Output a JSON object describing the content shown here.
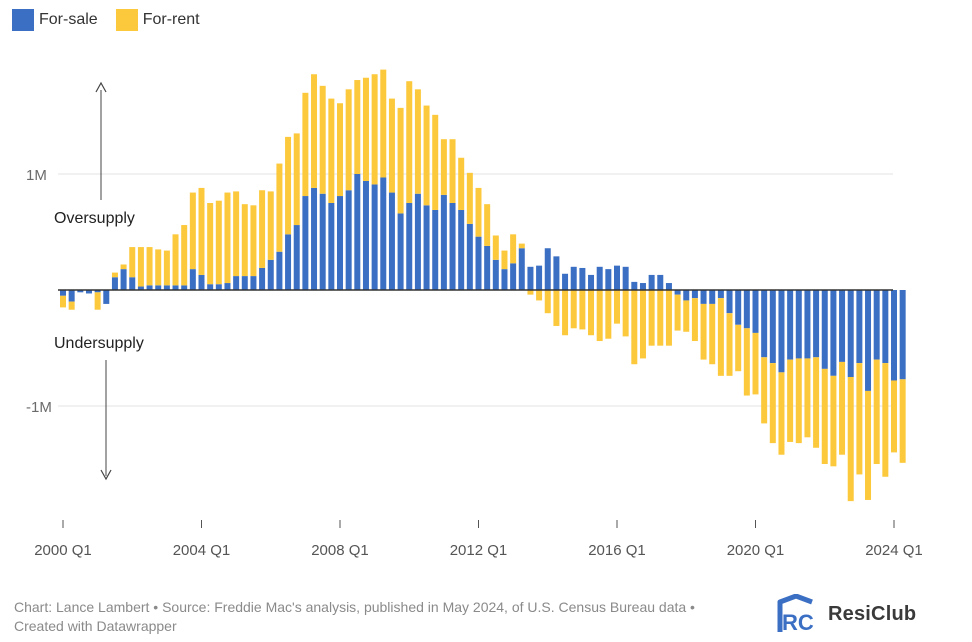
{
  "legend": [
    {
      "label": "For-sale",
      "color": "#3b6fc4"
    },
    {
      "label": "For-rent",
      "color": "#fcc93c"
    }
  ],
  "annotations": {
    "oversupply": "Oversupply",
    "undersupply": "Undersupply"
  },
  "footer": {
    "credit": "Chart: Lance Lambert • Source: Freddie Mac's analysis, published in May 2024, of U.S. Census Bureau data • Created with Datawrapper"
  },
  "brand": {
    "name": "ResiClub",
    "logo_letters": "RC"
  },
  "chart_data": {
    "type": "bar",
    "stacked": true,
    "title": "",
    "xlabel": "",
    "ylabel": "",
    "ylim": [
      -1.98,
      1.95
    ],
    "y_ticks": [
      {
        "value": 1,
        "label": "1M"
      },
      {
        "value": -1,
        "label": "-1M"
      }
    ],
    "grid": true,
    "legend_position": "top-left",
    "x_ticks": [
      {
        "value": 2000.0,
        "label": "2000 Q1"
      },
      {
        "value": 2004.0,
        "label": "2004 Q1"
      },
      {
        "value": 2008.0,
        "label": "2008 Q1"
      },
      {
        "value": 2012.0,
        "label": "2012 Q1"
      },
      {
        "value": 2016.0,
        "label": "2016 Q1"
      },
      {
        "value": 2020.0,
        "label": "2020 Q1"
      },
      {
        "value": 2024.0,
        "label": "2024 Q1"
      }
    ],
    "period_start": "2000 Q1",
    "period_step": "quarter",
    "series": [
      {
        "name": "For-sale",
        "color": "#3b6fc4",
        "values": [
          -0.05,
          -0.1,
          -0.02,
          -0.03,
          -0.02,
          -0.12,
          0.11,
          0.18,
          0.11,
          0.03,
          0.04,
          0.04,
          0.04,
          0.04,
          0.04,
          0.18,
          0.13,
          0.05,
          0.05,
          0.06,
          0.12,
          0.12,
          0.12,
          0.19,
          0.26,
          0.33,
          0.48,
          0.56,
          0.81,
          0.88,
          0.83,
          0.75,
          0.81,
          0.86,
          1.0,
          0.94,
          0.91,
          0.97,
          0.84,
          0.66,
          0.75,
          0.83,
          0.73,
          0.69,
          0.82,
          0.75,
          0.69,
          0.57,
          0.46,
          0.38,
          0.26,
          0.18,
          0.23,
          0.36,
          0.2,
          0.21,
          0.36,
          0.29,
          0.14,
          0.2,
          0.19,
          0.13,
          0.2,
          0.18,
          0.21,
          0.2,
          0.07,
          0.06,
          0.13,
          0.13,
          0.06,
          -0.04,
          -0.09,
          -0.07,
          -0.12,
          -0.12,
          -0.07,
          -0.2,
          -0.3,
          -0.33,
          -0.37,
          -0.58,
          -0.63,
          -0.71,
          -0.6,
          -0.59,
          -0.59,
          -0.58,
          -0.68,
          -0.74,
          -0.62,
          -0.75,
          -0.63,
          -0.87,
          -0.6,
          -0.63,
          -0.78,
          -0.77
        ]
      },
      {
        "name": "For-rent",
        "color": "#fcc93c",
        "values": [
          -0.1,
          -0.07,
          0.0,
          0.0,
          -0.15,
          0.0,
          0.04,
          0.04,
          0.26,
          0.34,
          0.33,
          0.31,
          0.3,
          0.44,
          0.52,
          0.66,
          0.75,
          0.7,
          0.72,
          0.78,
          0.73,
          0.62,
          0.61,
          0.67,
          0.59,
          0.76,
          0.84,
          0.79,
          0.89,
          0.98,
          0.93,
          0.9,
          0.8,
          0.87,
          0.81,
          0.89,
          0.95,
          0.93,
          0.81,
          0.91,
          1.05,
          0.9,
          0.86,
          0.82,
          0.48,
          0.55,
          0.45,
          0.44,
          0.42,
          0.36,
          0.21,
          0.16,
          0.25,
          0.04,
          -0.04,
          -0.09,
          -0.2,
          -0.31,
          -0.39,
          -0.33,
          -0.34,
          -0.39,
          -0.44,
          -0.42,
          -0.29,
          -0.4,
          -0.64,
          -0.59,
          -0.48,
          -0.48,
          -0.48,
          -0.31,
          -0.27,
          -0.37,
          -0.48,
          -0.52,
          -0.67,
          -0.54,
          -0.4,
          -0.58,
          -0.53,
          -0.57,
          -0.69,
          -0.71,
          -0.71,
          -0.73,
          -0.68,
          -0.78,
          -0.82,
          -0.78,
          -0.8,
          -1.07,
          -0.96,
          -0.94,
          -0.9,
          -0.98,
          -0.62,
          -0.72
        ]
      }
    ]
  }
}
